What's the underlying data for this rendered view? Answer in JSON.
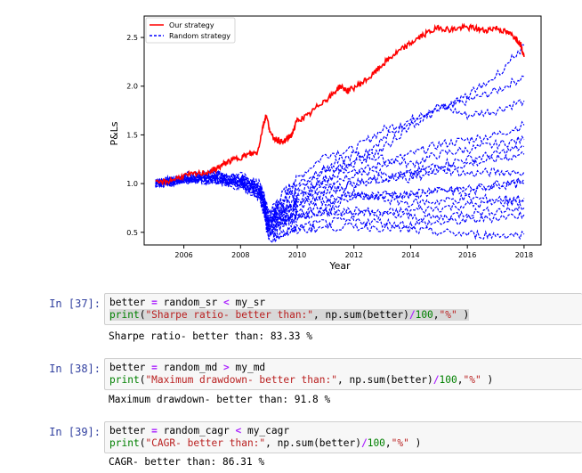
{
  "chart_data": {
    "type": "line",
    "title": "",
    "xlabel": "Year",
    "ylabel": "P&Ls",
    "xlim": [
      2004.6,
      2018.6
    ],
    "ylim": [
      0.37,
      2.72
    ],
    "xticks": [
      "2006",
      "2008",
      "2010",
      "2012",
      "2014",
      "2016",
      "2018"
    ],
    "yticks": [
      "0.5",
      "1.0",
      "1.5",
      "2.0",
      "2.5"
    ],
    "legend_position": "top-left",
    "grid": false,
    "series": [
      {
        "name": "Our strategy",
        "color": "#ff0000",
        "style": "solid",
        "x": [
          2005.0,
          2005.5,
          2006.0,
          2006.5,
          2007.0,
          2007.3,
          2007.6,
          2008.0,
          2008.3,
          2008.6,
          2008.8,
          2008.9,
          2009.1,
          2009.3,
          2009.5,
          2009.8,
          2010.0,
          2010.4,
          2010.8,
          2011.2,
          2011.5,
          2011.8,
          2012.2,
          2012.6,
          2013.0,
          2013.4,
          2013.8,
          2014.2,
          2014.6,
          2015.0,
          2015.4,
          2015.8,
          2016.2,
          2016.6,
          2017.0,
          2017.4,
          2017.7,
          2017.9,
          2018.0
        ],
        "y": [
          1.0,
          1.03,
          1.08,
          1.1,
          1.13,
          1.18,
          1.23,
          1.27,
          1.3,
          1.32,
          1.6,
          1.7,
          1.48,
          1.45,
          1.42,
          1.5,
          1.65,
          1.7,
          1.82,
          1.9,
          2.0,
          1.95,
          2.02,
          2.1,
          2.22,
          2.32,
          2.4,
          2.48,
          2.55,
          2.6,
          2.58,
          2.6,
          2.6,
          2.57,
          2.6,
          2.55,
          2.5,
          2.42,
          2.3
        ]
      },
      {
        "name": "Random strategy",
        "color": "#0000ff",
        "style": "dashed",
        "x": [
          2005.0,
          2006.0,
          2007.0,
          2008.0,
          2008.7,
          2009.0,
          2009.5,
          2010.0,
          2011.0,
          2012.0,
          2013.0,
          2014.0,
          2015.0,
          2016.0,
          2017.0,
          2018.0
        ],
        "y": [
          1.0,
          1.08,
          1.1,
          1.05,
          0.95,
          0.6,
          0.85,
          1.0,
          1.15,
          1.2,
          1.35,
          1.6,
          1.75,
          1.9,
          2.1,
          2.42
        ]
      }
    ],
    "random_paths_y": [
      [
        1.0,
        1.06,
        1.08,
        1.0,
        0.95,
        0.55,
        0.7,
        0.8,
        1.05,
        1.25,
        1.45,
        1.65,
        1.75,
        1.85,
        1.95,
        2.1
      ],
      [
        1.0,
        1.05,
        1.1,
        1.08,
        0.98,
        0.7,
        0.9,
        1.05,
        1.3,
        1.35,
        1.55,
        1.65,
        1.8,
        1.7,
        1.75,
        1.85
      ],
      [
        1.0,
        1.04,
        1.06,
        1.02,
        0.9,
        0.6,
        0.75,
        0.85,
        1.0,
        1.1,
        1.2,
        1.3,
        1.4,
        1.45,
        1.5,
        1.6
      ],
      [
        1.0,
        1.07,
        1.1,
        1.05,
        0.95,
        0.65,
        0.8,
        0.95,
        1.15,
        1.3,
        1.25,
        1.2,
        1.3,
        1.35,
        1.4,
        1.45
      ],
      [
        1.0,
        1.03,
        1.05,
        1.0,
        0.92,
        0.5,
        0.6,
        0.75,
        0.9,
        1.0,
        1.05,
        1.1,
        1.2,
        1.25,
        1.3,
        1.38
      ],
      [
        1.0,
        1.05,
        1.08,
        1.06,
        1.0,
        0.7,
        0.85,
        0.9,
        1.05,
        1.15,
        1.1,
        1.05,
        1.15,
        1.2,
        1.25,
        1.3
      ],
      [
        1.0,
        1.04,
        1.06,
        1.03,
        0.94,
        0.62,
        0.72,
        0.82,
        0.95,
        1.0,
        1.05,
        1.1,
        1.15,
        1.1,
        1.12,
        1.12
      ],
      [
        1.0,
        1.06,
        1.05,
        1.0,
        0.9,
        0.55,
        0.65,
        0.7,
        0.8,
        0.9,
        0.85,
        0.9,
        0.95,
        0.9,
        1.0,
        1.05
      ],
      [
        1.0,
        1.02,
        1.04,
        1.0,
        0.88,
        0.5,
        0.58,
        0.65,
        0.75,
        0.85,
        0.9,
        0.88,
        0.92,
        0.95,
        0.98,
        1.0
      ],
      [
        1.0,
        1.05,
        1.07,
        1.04,
        0.95,
        0.65,
        0.72,
        0.78,
        0.85,
        0.88,
        0.84,
        0.8,
        0.82,
        0.85,
        0.84,
        0.85
      ],
      [
        1.0,
        1.03,
        1.04,
        1.0,
        0.9,
        0.55,
        0.6,
        0.65,
        0.7,
        0.72,
        0.7,
        0.72,
        0.75,
        0.78,
        0.8,
        0.82
      ],
      [
        1.0,
        1.04,
        1.05,
        1.02,
        0.92,
        0.6,
        0.65,
        0.68,
        0.72,
        0.7,
        0.68,
        0.66,
        0.65,
        0.7,
        0.72,
        0.75
      ],
      [
        1.0,
        1.02,
        1.03,
        0.98,
        0.85,
        0.45,
        0.5,
        0.55,
        0.6,
        0.62,
        0.6,
        0.58,
        0.6,
        0.62,
        0.65,
        0.68
      ],
      [
        1.0,
        1.03,
        1.02,
        0.97,
        0.85,
        0.42,
        0.48,
        0.52,
        0.55,
        0.56,
        0.55,
        0.52,
        0.5,
        0.48,
        0.47,
        0.48
      ]
    ]
  },
  "cells": [
    {
      "prompt": "In [37]:",
      "code_line1_parts": [
        "better",
        " = ",
        "random_sr",
        " < ",
        "my_sr"
      ],
      "code_line2": {
        "fn": "print",
        "open": "(",
        "str": "\"Sharpe ratio- better than:\"",
        "mid": ", np.",
        "sum": "sum",
        "args": "(better)",
        "div": "/",
        "num": "100",
        "comma": ",",
        "str2": "\"%\"",
        "close": " )"
      },
      "output": "Sharpe ratio- better than: 83.33 %"
    },
    {
      "prompt": "In [38]:",
      "code_line1_parts": [
        "better",
        " = ",
        "random_md",
        " > ",
        "my_md"
      ],
      "code_line2": {
        "fn": "print",
        "open": "(",
        "str": "\"Maximum drawdown- better than:\"",
        "mid": ", np.",
        "sum": "sum",
        "args": "(better)",
        "div": "/",
        "num": "100",
        "comma": ",",
        "str2": "\"%\"",
        "close": " )"
      },
      "output": "Maximum drawdown- better than: 91.8 %"
    },
    {
      "prompt": "In [39]:",
      "code_line1_parts": [
        "better",
        " = ",
        "random_cagr",
        " < ",
        "my_cagr"
      ],
      "code_line2": {
        "fn": "print",
        "open": "(",
        "str": "\"CAGR- better than:\"",
        "mid": ", np.",
        "sum": "sum",
        "args": "(better)",
        "div": "/",
        "num": "100",
        "comma": ",",
        "str2": "\"%\"",
        "close": " )"
      },
      "output": "CAGR- better than: 86.31 %"
    }
  ]
}
